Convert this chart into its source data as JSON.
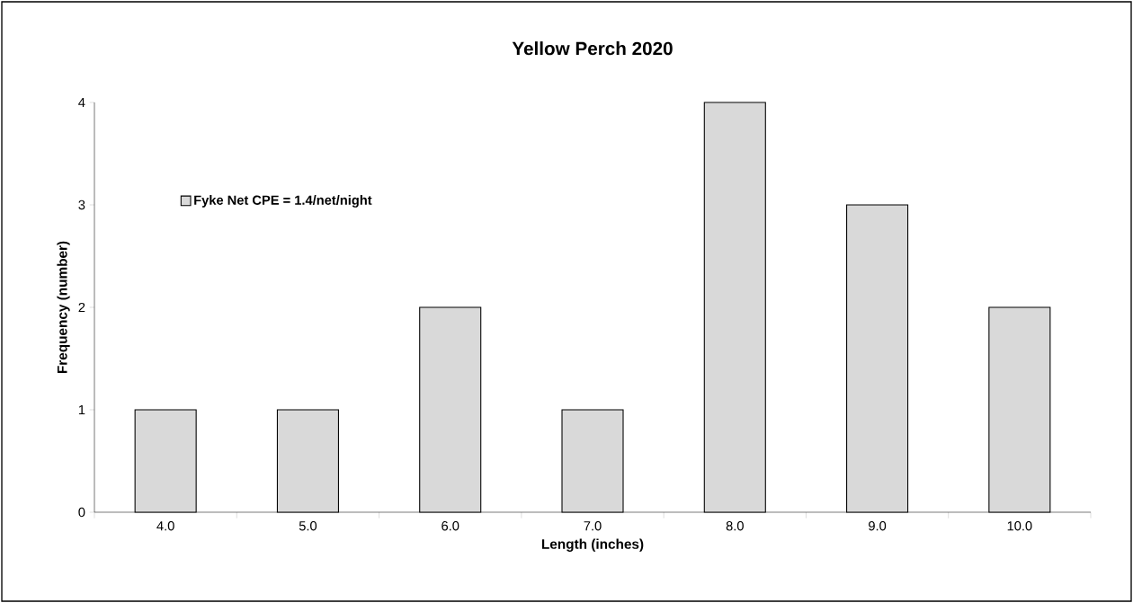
{
  "chart_data": {
    "type": "bar",
    "title": "Yellow Perch 2020",
    "xlabel": "Length (inches)",
    "ylabel": "Frequency (number)",
    "categories": [
      "4.0",
      "5.0",
      "6.0",
      "7.0",
      "8.0",
      "9.0",
      "10.0"
    ],
    "series": [
      {
        "name": "Fyke Net CPE = 1.4/net/night",
        "color": "#d9d9d9",
        "values": [
          1,
          1,
          2,
          1,
          4,
          3,
          2
        ]
      }
    ],
    "ylim": [
      0,
      4
    ],
    "yticks": [
      0,
      1,
      2,
      3,
      4
    ],
    "legend": "top left"
  }
}
